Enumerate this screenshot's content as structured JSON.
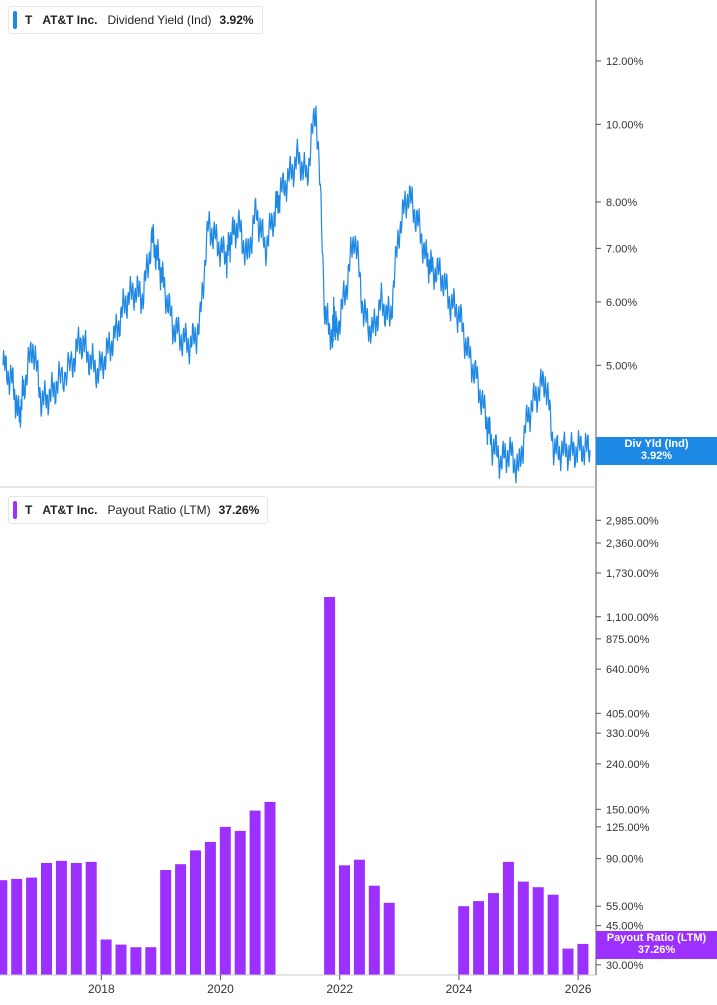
{
  "colors": {
    "yield": "#1e88e5",
    "payout": "#9b30ff",
    "axis": "#555555",
    "grid": "#c8c8c8"
  },
  "panels": {
    "top": {
      "ticker": "T",
      "company": "AT&T Inc.",
      "metric": "Dividend Yield (Ind)",
      "value": "3.92%",
      "tag_label": "Div Yld (Ind)",
      "tag_value": "3.92%"
    },
    "bottom": {
      "ticker": "T",
      "company": "Payout Ratio (LTM)",
      "metric_company": "AT&T Inc.",
      "metric": "Payout Ratio (LTM)",
      "value": "37.26%",
      "tag_label": "Payout Ratio (LTM)",
      "tag_value": "37.26%"
    }
  },
  "chart_data": [
    {
      "type": "line",
      "scale": "log",
      "series": [
        {
          "name": "Dividend Yield (Ind)",
          "x": [
            2016.35,
            2016.5,
            2016.62,
            2016.7,
            2016.85,
            2017.0,
            2017.15,
            2017.3,
            2017.5,
            2017.65,
            2017.8,
            2017.95,
            2018.1,
            2018.25,
            2018.4,
            2018.55,
            2018.7,
            2018.85,
            2018.95,
            2019.05,
            2019.2,
            2019.35,
            2019.5,
            2019.65,
            2019.8,
            2019.95,
            2020.1,
            2020.17,
            2020.3,
            2020.45,
            2020.6,
            2020.75,
            2020.9,
            2021.0,
            2021.15,
            2021.3,
            2021.45,
            2021.6,
            2021.75,
            2021.88,
            2021.9,
            2021.95,
            2022.1,
            2022.25,
            2022.4,
            2022.55,
            2022.7,
            2022.85,
            2023.0,
            2023.15,
            2023.3,
            2023.45,
            2023.55,
            2023.7,
            2023.85,
            2024.0,
            2024.15,
            2024.3,
            2024.45,
            2024.55,
            2024.7,
            2024.85,
            2025.0,
            2025.15,
            2025.3,
            2025.45,
            2025.6,
            2025.75,
            2025.9,
            2026.05,
            2026.2
          ],
          "values": [
            5.0,
            4.8,
            4.3,
            4.7,
            5.3,
            4.5,
            4.6,
            4.8,
            5.0,
            5.4,
            5.1,
            4.9,
            5.2,
            5.5,
            6.0,
            6.2,
            6.1,
            7.2,
            6.8,
            6.3,
            5.6,
            5.4,
            5.3,
            5.6,
            7.5,
            7.1,
            6.8,
            7.2,
            7.5,
            6.8,
            7.8,
            7.0,
            7.7,
            8.2,
            8.6,
            9.1,
            8.6,
            10.5,
            5.8,
            5.4,
            5.8,
            5.5,
            6.2,
            7.3,
            5.8,
            5.5,
            6.0,
            5.7,
            7.4,
            8.2,
            7.6,
            6.8,
            6.6,
            6.5,
            6.0,
            5.8,
            5.2,
            4.8,
            4.3,
            4.0,
            3.8,
            3.9,
            3.7,
            4.3,
            4.6,
            4.8,
            3.9,
            3.92,
            3.9,
            3.95,
            3.92
          ]
        }
      ],
      "xlim": [
        2016.3,
        2026.3
      ],
      "ylim": [
        3.7,
        13.5
      ],
      "x_ticks": [
        2018,
        2020,
        2022,
        2024,
        2026
      ],
      "y_tick_values": [
        12,
        10,
        8,
        7,
        6,
        5
      ],
      "y_tick_labels": [
        "12.00%",
        "10.00%",
        "8.00%",
        "7.00%",
        "6.00%",
        "5.00%"
      ]
    },
    {
      "type": "bar",
      "scale": "log",
      "series": [
        {
          "name": "Payout Ratio (LTM)",
          "x": [
            2016.33,
            2016.58,
            2016.83,
            2017.08,
            2017.33,
            2017.58,
            2017.83,
            2018.08,
            2018.33,
            2018.58,
            2018.83,
            2019.08,
            2019.33,
            2019.58,
            2019.83,
            2020.08,
            2020.33,
            2020.58,
            2020.83,
            2021.83,
            2022.08,
            2022.33,
            2022.58,
            2022.83,
            2024.08,
            2024.33,
            2024.58,
            2024.83,
            2025.08,
            2025.33,
            2025.58,
            2025.83,
            2026.08
          ],
          "values": [
            72,
            73,
            74,
            86,
            88,
            86,
            87,
            39,
            37,
            36,
            36,
            80,
            85,
            98,
            107,
            125,
            120,
            148,
            162,
            1350,
            84,
            89,
            68,
            57,
            55,
            58,
            63,
            87,
            71,
            67,
            62,
            35.5,
            37.26
          ]
        }
      ],
      "xlim": [
        2016.3,
        2026.3
      ],
      "ylim": [
        27,
        4000
      ],
      "x_ticks": [
        2018,
        2020,
        2022,
        2024,
        2026
      ],
      "x_tick_labels": [
        "2018",
        "2020",
        "2022",
        "2024",
        "2026"
      ],
      "y_tick_values": [
        2985,
        2360,
        1730,
        1100,
        875,
        640,
        405,
        330,
        240,
        150,
        125,
        90,
        55,
        45,
        30
      ],
      "y_tick_labels": [
        "2,985.00%",
        "2,360.00%",
        "1,730.00%",
        "1,100.00%",
        "875.00%",
        "640.00%",
        "405.00%",
        "330.00%",
        "240.00%",
        "150.00%",
        "125.00%",
        "90.00%",
        "55.00%",
        "45.00%",
        "30.00%"
      ]
    }
  ]
}
